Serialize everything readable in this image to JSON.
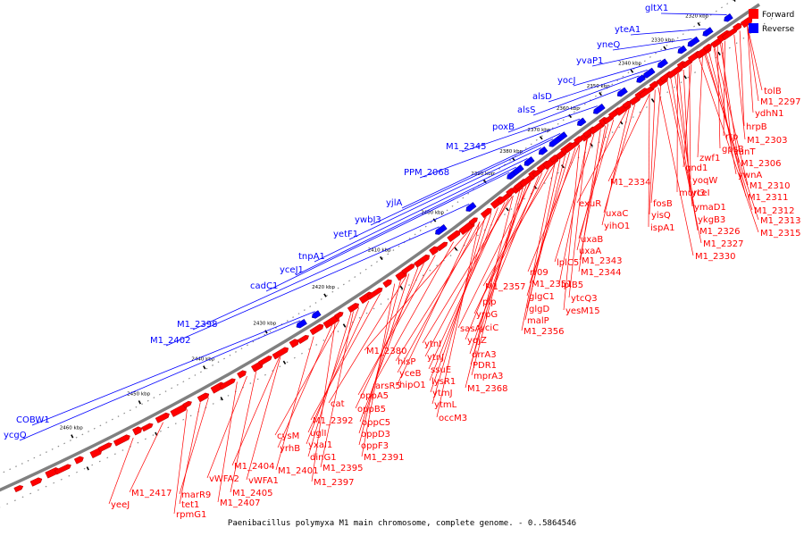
{
  "legend": {
    "forward": {
      "label": "Forward",
      "color": "#ff0000"
    },
    "reverse": {
      "label": "Reverse",
      "color": "#0000ff"
    }
  },
  "caption": "Paenibacillus polymyxa M1 main chromosome, complete genome. - 0..5864546",
  "colors": {
    "forward": "#ff0000",
    "reverse": "#0000ff",
    "backbone": "#808080",
    "tick": "#000000"
  },
  "kbp_ticks": [
    "2310 kbp",
    "2320 kbp",
    "2330 kbp",
    "2340 kbp",
    "2350 kbp",
    "2360 kbp",
    "2370 kbp",
    "2380 kbp",
    "2390 kbp",
    "2400 kbp",
    "2410 kbp",
    "2420 kbp",
    "2430 kbp",
    "2440 kbp",
    "2450 kbp",
    "2460 kbp"
  ],
  "reverse_genes": [
    "gltX1",
    "yteA1",
    "yneQ",
    "yvaP1",
    "yocJ",
    "alsD",
    "alsS",
    "poxB",
    "M1_2345",
    "PPM_2068",
    "yjlA",
    "ywbI3",
    "yetF1",
    "tnpA1",
    "yceJ1",
    "cadC1",
    "M1_2398",
    "M1_2402",
    "COBW1",
    "ycgQ"
  ],
  "forward_genes": [
    "tolB",
    "M1_2297",
    "ydhN1",
    "hrpB",
    "rtp",
    "M1_2303",
    "gpsB",
    "vanT",
    "zwf1",
    "M1_2306",
    "gnd1",
    "ywnA",
    "yoqW",
    "M1_2310",
    "M1_2334",
    "murI3",
    "fosB",
    "yceI",
    "M1_2311",
    "ymaD1",
    "M1_2312",
    "exuR",
    "yisQ",
    "ykgB3",
    "M1_2313",
    "uxaC",
    "ispA1",
    "M1_2326",
    "M1_2315",
    "yihO1",
    "M1_2327",
    "M1_2330",
    "uxaB",
    "uxaA",
    "M1_2343",
    "lplC5",
    "M1_2344",
    "rr09",
    "M1_2357",
    "M1_2351",
    "lplB5",
    "pip",
    "glgC1",
    "ytcQ3",
    "glgD",
    "yesM15",
    "yrpG",
    "malP",
    "M1_2356",
    "sasA",
    "yciC",
    "yqjZ",
    "M1_2380",
    "ytnI",
    "drrA3",
    "hisP",
    "ytnJ",
    "PDR1",
    "yceB",
    "ssuE",
    "arsR5",
    "lysR1",
    "mprA3",
    "hipO1",
    "ytmJ",
    "M1_2368",
    "oppA5",
    "cat",
    "ytmL",
    "oppB5",
    "occM3",
    "M1_2392",
    "oppC5",
    "cysM",
    "uglI",
    "oppD3",
    "yrhB",
    "yxaI1",
    "oppF3",
    "dinG1",
    "M1_2391",
    "M1_2404",
    "M1_2401",
    "M1_2395",
    "vWFA2",
    "vWFA1",
    "M1_2397",
    "marR9",
    "M1_2405",
    "M1_2417",
    "tet1",
    "M1_2407",
    "yeeJ",
    "rpmG1"
  ]
}
